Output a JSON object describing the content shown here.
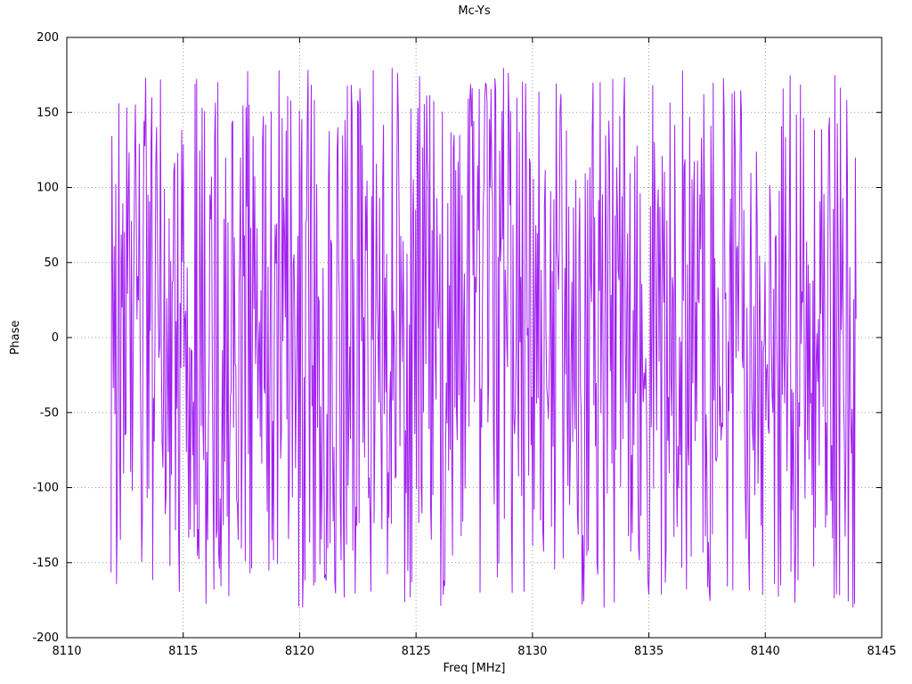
{
  "chart_data": {
    "type": "line",
    "title": "Mc-Ys",
    "xlabel": "Freq [MHz]",
    "ylabel": "Phase",
    "xlim": [
      8110,
      8145
    ],
    "ylim": [
      -200,
      200
    ],
    "x_ticks": [
      8110,
      8115,
      8120,
      8125,
      8130,
      8135,
      8140,
      8145
    ],
    "y_ticks": [
      -200,
      -150,
      -100,
      -50,
      0,
      50,
      100,
      150,
      200
    ],
    "grid": "dotted",
    "legend": "none",
    "colors": {
      "line": "#a020f0",
      "grid": "#9a9a9a",
      "border": "#000000",
      "text": "#000000",
      "background": "#ffffff"
    },
    "series": [
      {
        "name": "Mc-Ys phase",
        "description": "dense wrapped phase noise spanning the full vertical range",
        "x_start": 8111.9,
        "x_end": 8143.9,
        "n_points": 950,
        "y_min": -180,
        "y_max": 180,
        "distribution": "uniform_random",
        "seed": 987654321
      }
    ]
  }
}
